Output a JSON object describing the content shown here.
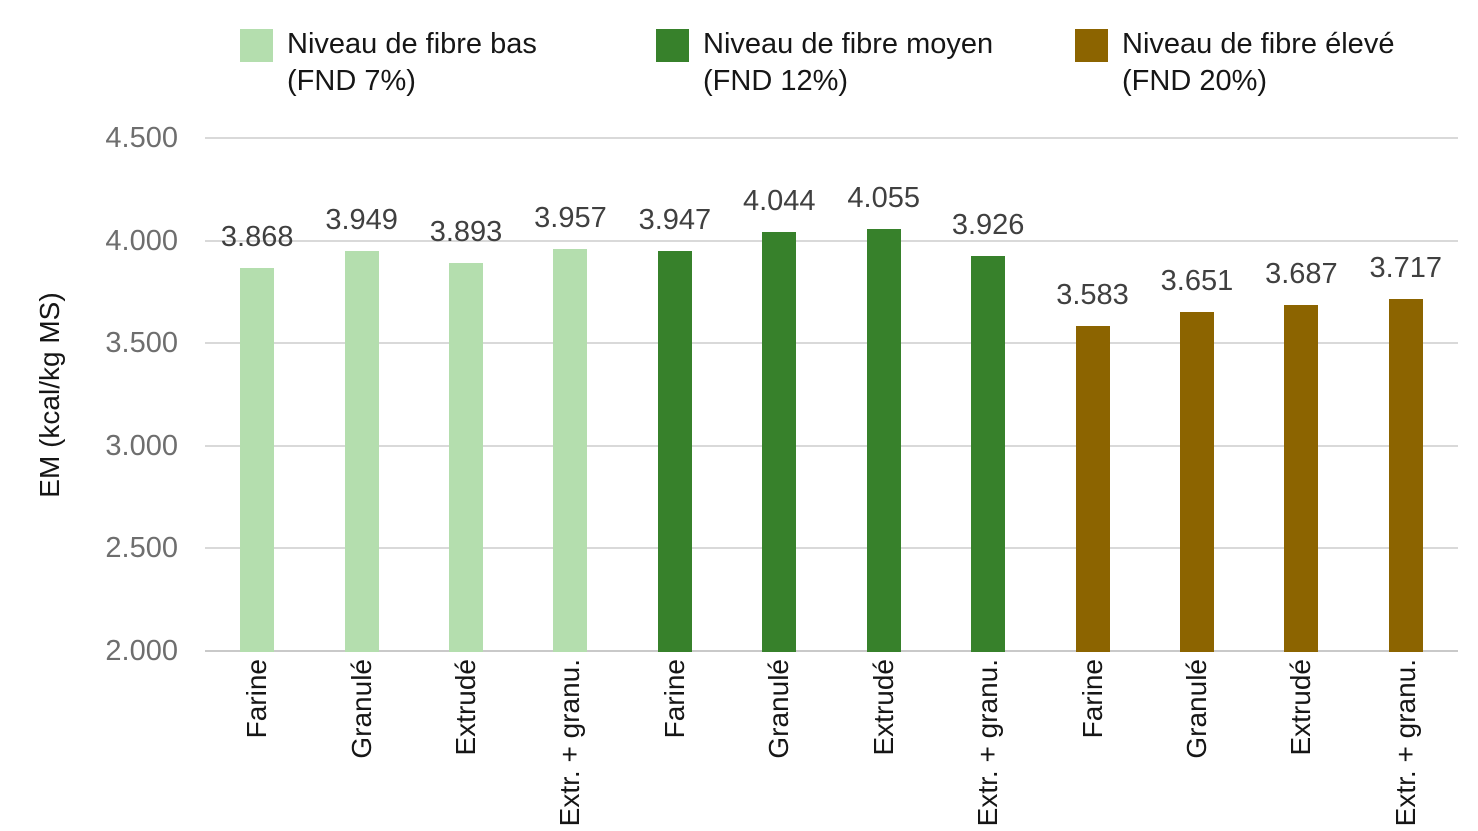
{
  "chart_data": {
    "type": "bar",
    "title": "",
    "xlabel": "",
    "ylabel": "EM (kcal/kg MS)",
    "ylim": [
      2000,
      4500
    ],
    "grid": true,
    "legend_position": "top",
    "yticks": [
      {
        "value": 4500,
        "label": "4.500"
      },
      {
        "value": 4000,
        "label": "4.000"
      },
      {
        "value": 3500,
        "label": "3.500"
      },
      {
        "value": 3000,
        "label": "3.000"
      },
      {
        "value": 2500,
        "label": "2.500"
      },
      {
        "value": 2000,
        "label": "2.000"
      }
    ],
    "categories": [
      "Farine",
      "Granulé",
      "Extrudé",
      "Extr. + granu."
    ],
    "series": [
      {
        "name": "Niveau de fibre bas (FND 7%)",
        "legend_line1": "Niveau de fibre bas",
        "legend_line2": "(FND 7%)",
        "color": "#b4deae",
        "values": [
          3868,
          3949,
          3893,
          3957
        ],
        "labels": [
          "3.868",
          "3.949",
          "3.893",
          "3.957"
        ]
      },
      {
        "name": "Niveau de fibre moyen (FND 12%)",
        "legend_line1": "Niveau de fibre moyen",
        "legend_line2": "(FND 12%)",
        "color": "#37812b",
        "values": [
          3947,
          4044,
          4055,
          3926
        ],
        "labels": [
          "3.947",
          "4.044",
          "4.055",
          "3.926"
        ]
      },
      {
        "name": "Niveau de fibre élevé (FND 20%)",
        "legend_line1": "Niveau de fibre élevé",
        "legend_line2": "(FND 20%)",
        "color": "#8c6400",
        "values": [
          3583,
          3651,
          3687,
          3717
        ],
        "labels": [
          "3.583",
          "3.651",
          "3.687",
          "3.717"
        ]
      }
    ]
  },
  "colors": {
    "gridline": "#d9d9d9",
    "axis_line": "#c9c9c9",
    "tick_label": "#6e6e6e",
    "data_label": "#404040",
    "text": "#161616"
  }
}
